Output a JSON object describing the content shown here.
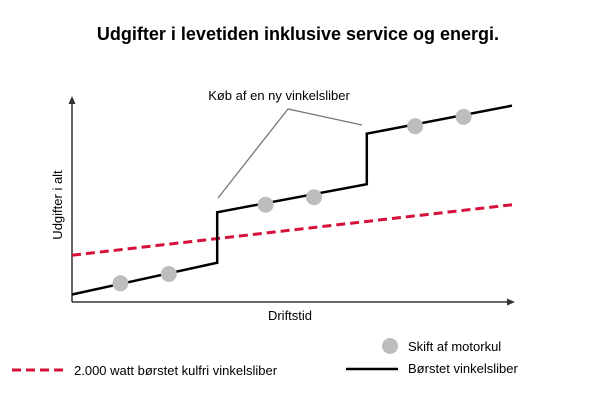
{
  "chart_data": {
    "type": "line",
    "title": "Udgifter i levetiden inklusive service og energi.",
    "xlabel": "Driftstid",
    "ylabel": "Udgifter i alt",
    "annotation": "Køb af en ny vinkelsliber",
    "x_ticks_shown": false,
    "y_ticks_shown": false,
    "grid": false,
    "legend_placement": "bottom",
    "xlim": [
      0,
      100
    ],
    "ylim": [
      0,
      100
    ],
    "series": [
      {
        "name": "2.000 watt børstet kulfri vinkelsliber",
        "style": "dashed",
        "color": "#d6103a",
        "x": [
          0,
          100
        ],
        "y": [
          25,
          52
        ]
      },
      {
        "name": "Børstet vinkelsliber",
        "style": "solid",
        "color": "#000000",
        "x": [
          0,
          33,
          33,
          67,
          67,
          100
        ],
        "y": [
          4,
          21,
          48,
          63,
          90,
          105
        ]
      }
    ],
    "markers": {
      "name": "Skift af motorkul",
      "color": "#bdbdbd",
      "points": [
        {
          "x": 11,
          "y": 10
        },
        {
          "x": 22,
          "y": 15
        },
        {
          "x": 44,
          "y": 52
        },
        {
          "x": 55,
          "y": 56
        },
        {
          "x": 78,
          "y": 94
        },
        {
          "x": 89,
          "y": 99
        }
      ]
    }
  }
}
